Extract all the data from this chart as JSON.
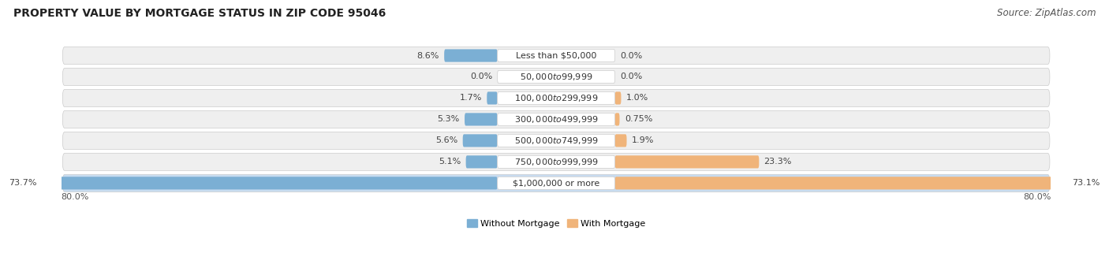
{
  "title": "PROPERTY VALUE BY MORTGAGE STATUS IN ZIP CODE 95046",
  "source": "Source: ZipAtlas.com",
  "categories": [
    "Less than $50,000",
    "$50,000 to $99,999",
    "$100,000 to $299,999",
    "$300,000 to $499,999",
    "$500,000 to $749,999",
    "$750,000 to $999,999",
    "$1,000,000 or more"
  ],
  "without_mortgage": [
    8.6,
    0.0,
    1.7,
    5.3,
    5.6,
    5.1,
    73.7
  ],
  "with_mortgage": [
    0.0,
    0.0,
    1.0,
    0.75,
    1.9,
    23.3,
    73.1
  ],
  "color_without": "#7BAFD4",
  "color_with": "#F0B47A",
  "axis_max": 80.0,
  "title_fontsize": 10,
  "source_fontsize": 8.5,
  "label_fontsize": 8,
  "category_fontsize": 8,
  "row_bg_normal": "#EFEFEF",
  "row_bg_last": "#C8DCF0",
  "bar_bg_normal": "#E0E0E0",
  "bar_bg_last_wo": "#B8D0E8",
  "bar_bg_last_wi": "#E8C890"
}
